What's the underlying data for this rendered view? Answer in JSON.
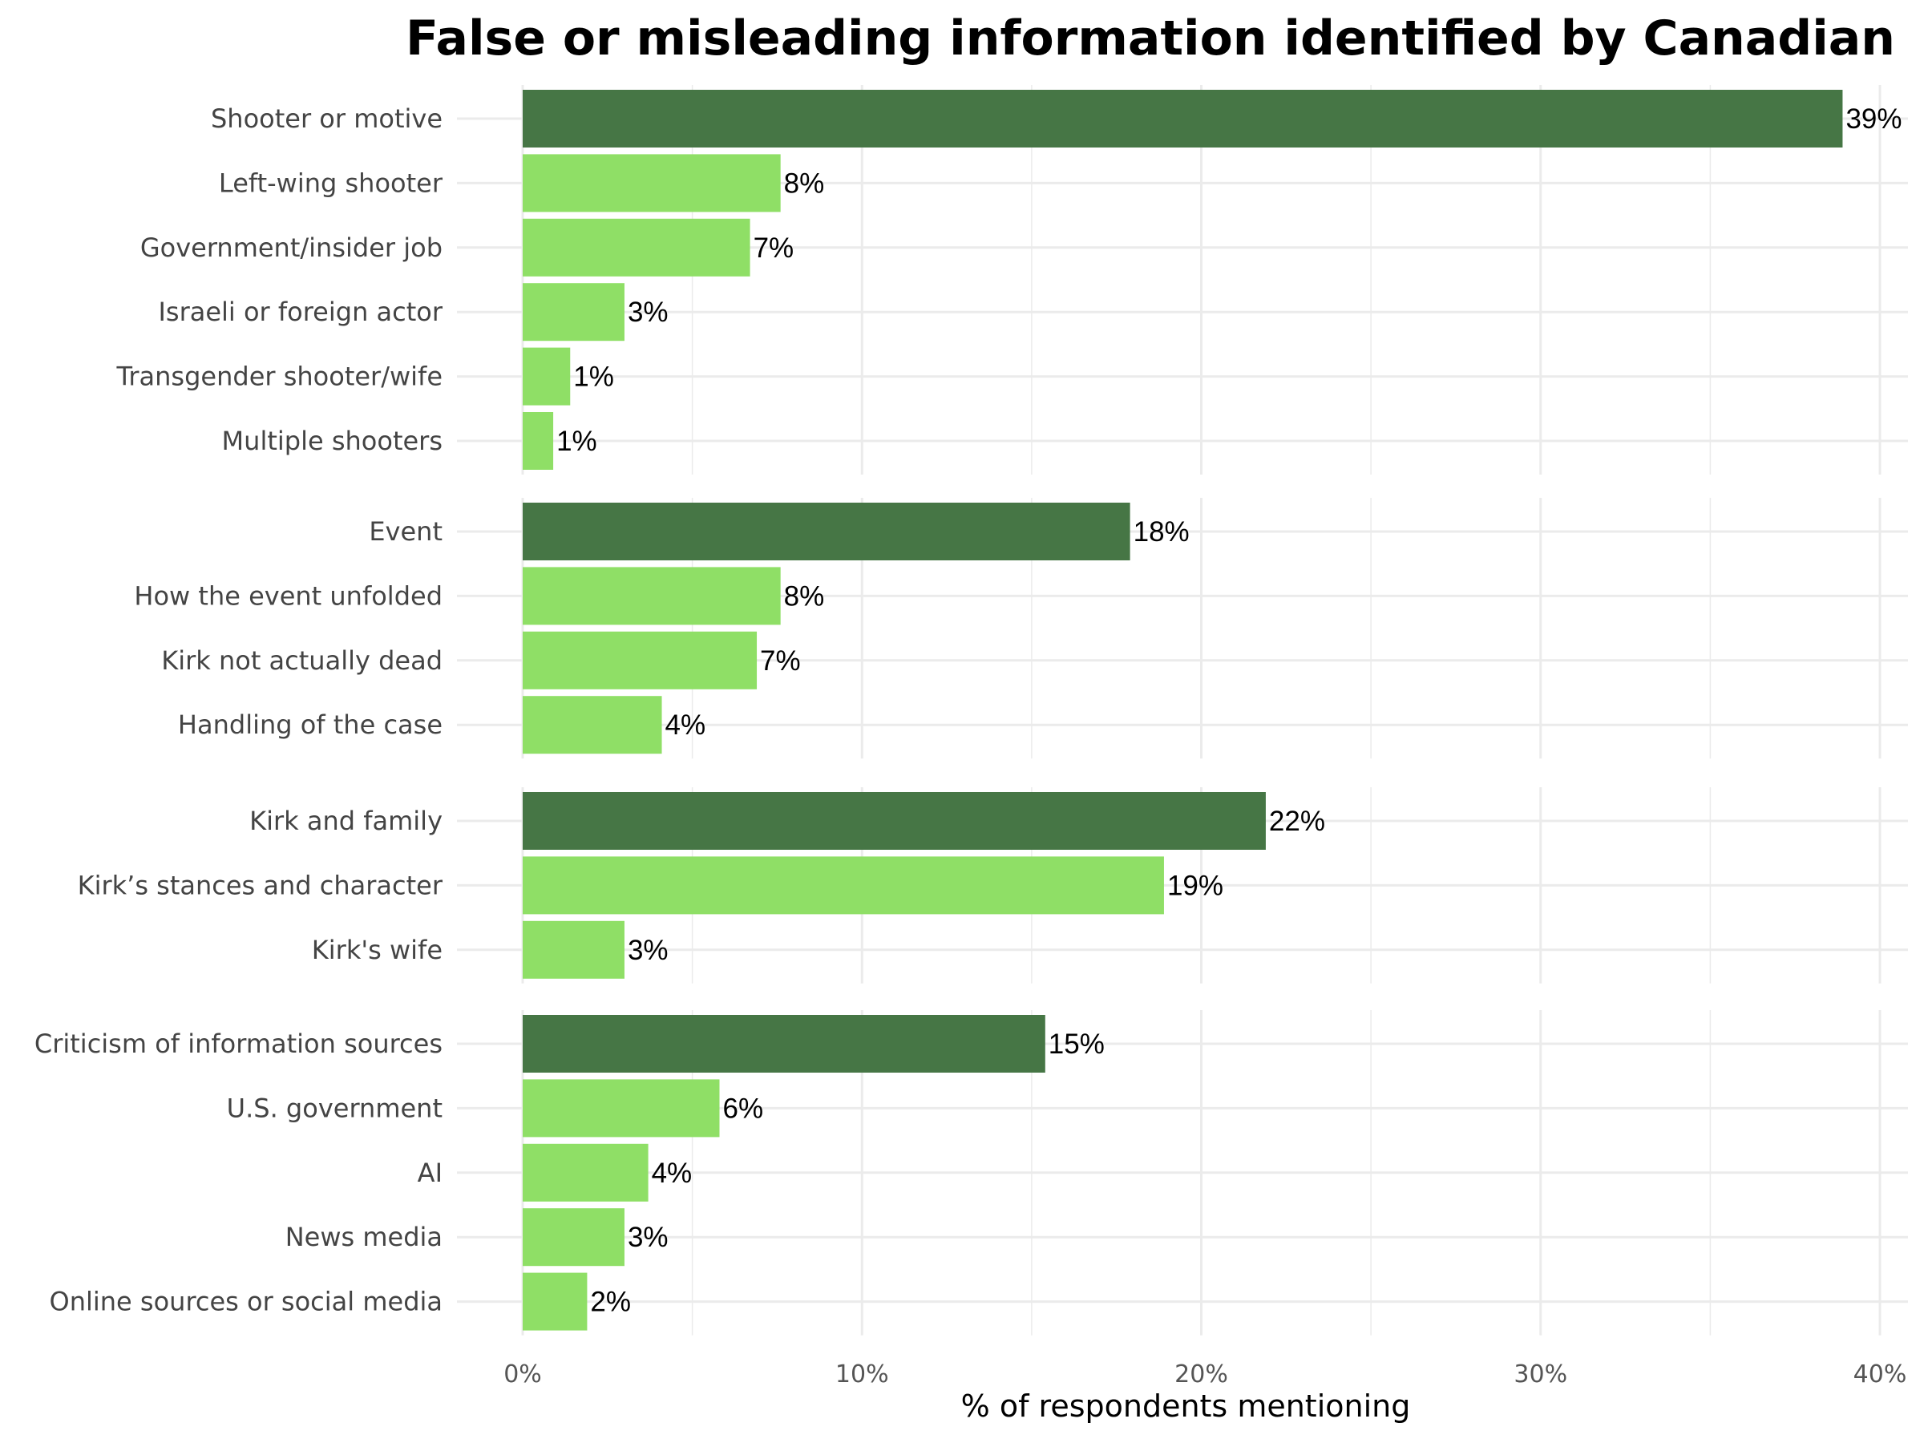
{
  "chart_data": {
    "type": "bar",
    "orientation": "horizontal",
    "title": "False or misleading information identified by Canadian",
    "xlabel": "% of respondents mentioning",
    "ylabel": "",
    "xlim": [
      0,
      40
    ],
    "xticks": [
      {
        "value": 0,
        "label": "0%"
      },
      {
        "value": 10,
        "label": "10%"
      },
      {
        "value": 20,
        "label": "20%"
      },
      {
        "value": 30,
        "label": "30%"
      },
      {
        "value": 40,
        "label": "40%"
      }
    ],
    "grid": true,
    "colors": {
      "group_header": "#467645",
      "subcategory": "#8fdf66",
      "grid": "#ebebeb"
    },
    "groups": [
      {
        "bars": [
          {
            "label": "Shooter or motive",
            "value": 38.9,
            "value_label": "39%",
            "kind": "header"
          },
          {
            "label": "Left-wing shooter",
            "value": 7.6,
            "value_label": "8%",
            "kind": "sub"
          },
          {
            "label": "Government/insider job",
            "value": 6.7,
            "value_label": "7%",
            "kind": "sub"
          },
          {
            "label": "Israeli or foreign actor",
            "value": 3.0,
            "value_label": "3%",
            "kind": "sub"
          },
          {
            "label": "Transgender shooter/wife",
            "value": 1.4,
            "value_label": "1%",
            "kind": "sub"
          },
          {
            "label": "Multiple shooters",
            "value": 0.9,
            "value_label": "1%",
            "kind": "sub"
          }
        ]
      },
      {
        "bars": [
          {
            "label": "Event",
            "value": 17.9,
            "value_label": "18%",
            "kind": "header"
          },
          {
            "label": "How the event unfolded",
            "value": 7.6,
            "value_label": "8%",
            "kind": "sub"
          },
          {
            "label": "Kirk not actually dead",
            "value": 6.9,
            "value_label": "7%",
            "kind": "sub"
          },
          {
            "label": "Handling of the case",
            "value": 4.1,
            "value_label": "4%",
            "kind": "sub"
          }
        ]
      },
      {
        "bars": [
          {
            "label": "Kirk and family",
            "value": 21.9,
            "value_label": "22%",
            "kind": "header"
          },
          {
            "label": "Kirk’s stances and character",
            "value": 18.9,
            "value_label": "19%",
            "kind": "sub"
          },
          {
            "label": "Kirk's wife",
            "value": 3.0,
            "value_label": "3%",
            "kind": "sub"
          }
        ]
      },
      {
        "bars": [
          {
            "label": "Criticism of information sources",
            "value": 15.4,
            "value_label": "15%",
            "kind": "header"
          },
          {
            "label": "U.S. government",
            "value": 5.8,
            "value_label": "6%",
            "kind": "sub"
          },
          {
            "label": "AI",
            "value": 3.7,
            "value_label": "4%",
            "kind": "sub"
          },
          {
            "label": "News media",
            "value": 3.0,
            "value_label": "3%",
            "kind": "sub"
          },
          {
            "label": "Online sources or social media",
            "value": 1.9,
            "value_label": "2%",
            "kind": "sub"
          }
        ]
      }
    ]
  }
}
